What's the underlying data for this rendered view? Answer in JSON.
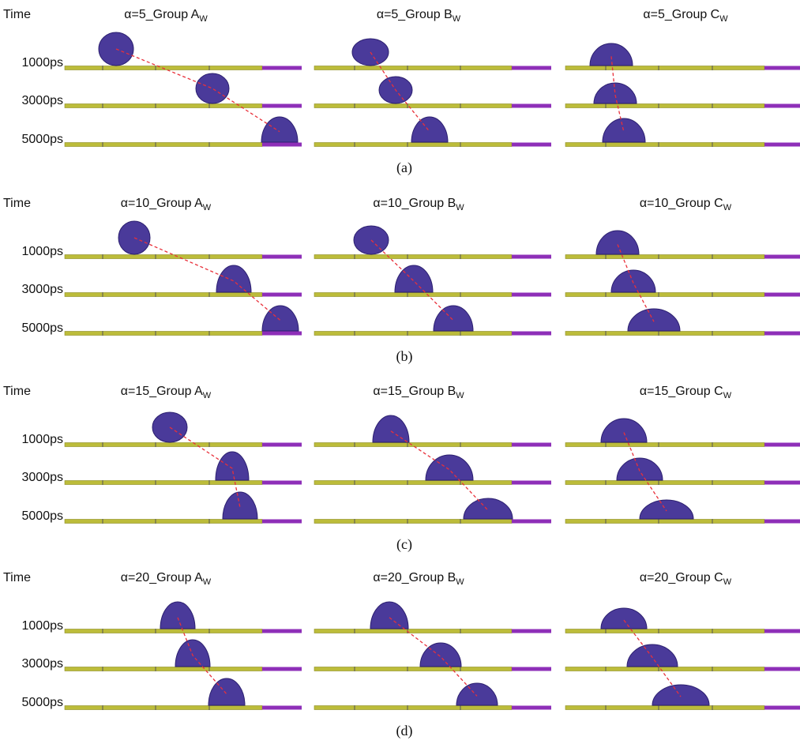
{
  "panels": [
    {
      "time_label": "Time",
      "caption": "(a)",
      "columns": [
        {
          "text": "α=5_Group A",
          "sub": "W"
        },
        {
          "text": "α=5_Group B",
          "sub": "W"
        },
        {
          "text": "α=5_Group C",
          "sub": "W"
        }
      ],
      "rows": [
        "1000ps",
        "3000ps",
        "5000ps"
      ]
    },
    {
      "time_label": "Time",
      "caption": "(b)",
      "columns": [
        {
          "text": "α=10_Group A",
          "sub": "W"
        },
        {
          "text": "α=10_Group B",
          "sub": "W"
        },
        {
          "text": "α=10_Group C",
          "sub": "W"
        }
      ],
      "rows": [
        "1000ps",
        "3000ps",
        "5000ps"
      ]
    },
    {
      "time_label": "Time",
      "caption": "(c)",
      "columns": [
        {
          "text": "α=15_Group A",
          "sub": "W"
        },
        {
          "text": "α=15_Group B",
          "sub": "W"
        },
        {
          "text": "α=15_Group C",
          "sub": "W"
        }
      ],
      "rows": [
        "1000ps",
        "3000ps",
        "5000ps"
      ]
    },
    {
      "time_label": "Time",
      "caption": "(d)",
      "columns": [
        {
          "text": "α=20_Group A",
          "sub": "W"
        },
        {
          "text": "α=20_Group B",
          "sub": "W"
        },
        {
          "text": "α=20_Group C",
          "sub": "W"
        }
      ],
      "rows": [
        "1000ps",
        "3000ps",
        "5000ps"
      ]
    }
  ]
}
